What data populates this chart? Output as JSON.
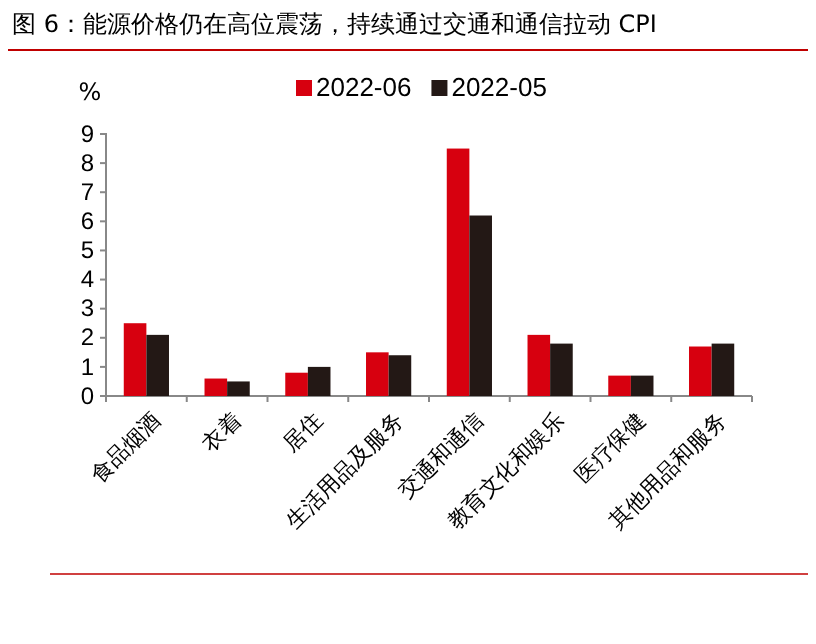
{
  "chart_data": {
    "type": "bar",
    "title": "图 6：能源价格仍在高位震荡，持续通过交通和通信拉动 CPI",
    "ylabel": "%",
    "categories": [
      "食品烟酒",
      "衣着",
      "居住",
      "生活用品及服务",
      "交通和通信",
      "教育文化和娱乐",
      "医疗保健",
      "其他用品和服务"
    ],
    "series": [
      {
        "name": "2022-06",
        "color": "#d7000f",
        "values": [
          2.5,
          0.6,
          0.8,
          1.5,
          8.5,
          2.1,
          0.7,
          1.7
        ]
      },
      {
        "name": "2022-05",
        "color": "#231815",
        "values": [
          2.1,
          0.5,
          1.0,
          1.4,
          6.2,
          1.8,
          0.7,
          1.8
        ]
      }
    ],
    "ylim": [
      0,
      9
    ],
    "yticks": [
      0,
      1,
      2,
      3,
      4,
      5,
      6,
      7,
      8,
      9
    ],
    "grid": false,
    "legend": "top"
  }
}
